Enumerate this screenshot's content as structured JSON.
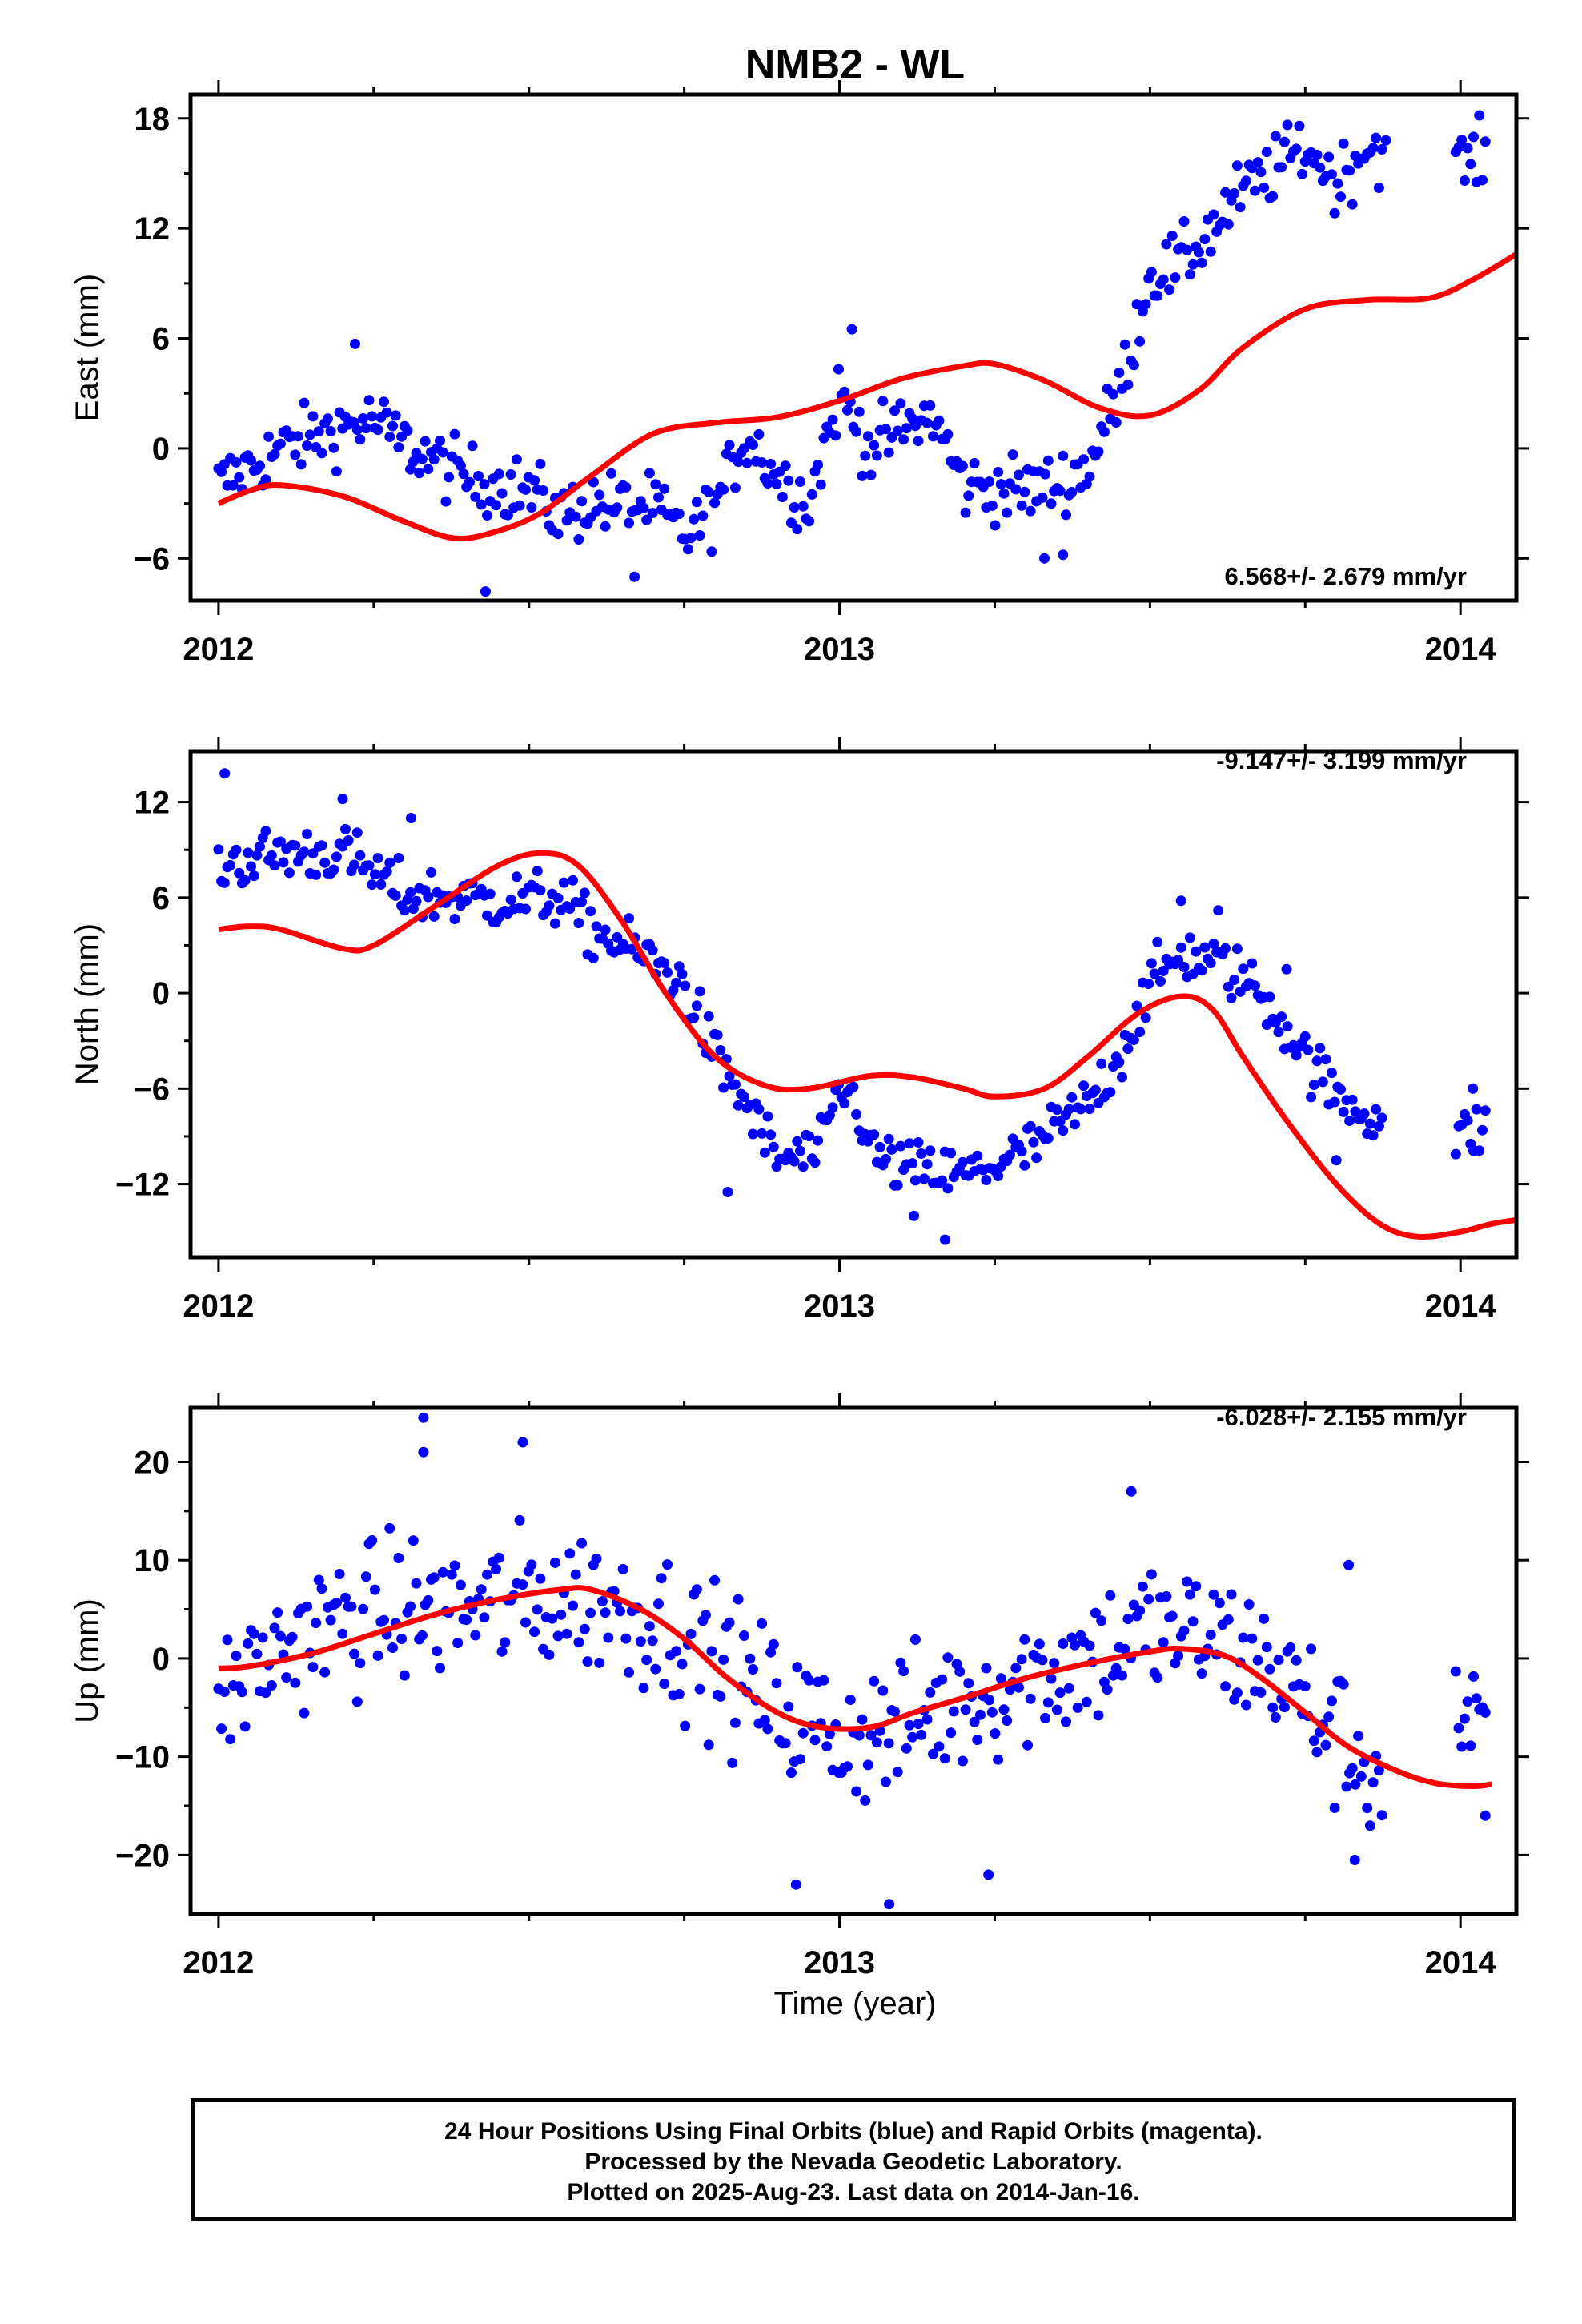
{
  "title": "NMB2 - WL",
  "x_tick_labels": [
    "2012",
    "2013",
    "2014"
  ],
  "x_axis_label": "Time (year)",
  "footer": {
    "line1": "24 Hour Positions Using Final Orbits (blue) and Rapid Orbits (magenta).",
    "line2": "Processed by the Nevada Geodetic Laboratory.",
    "line3": "Plotted on 2025-Aug-23. Last data on 2014-Jan-16."
  },
  "colors": {
    "points": "#0000ff",
    "model": "#ff0000",
    "axes": "#000000"
  },
  "chart_data": [
    {
      "type": "scatter",
      "panel": "east",
      "ylabel": "East (mm)",
      "rate_label": "6.568+/- 2.679 mm/yr",
      "xlim": [
        2011.955,
        2014.09
      ],
      "ylim": [
        -8.3,
        19.3
      ],
      "yticks": [
        -6,
        0,
        6,
        12,
        18
      ],
      "grid": false,
      "data_trend": [
        [
          2012.0,
          -2.0
        ],
        [
          2012.1,
          0.0
        ],
        [
          2012.2,
          1.2
        ],
        [
          2012.25,
          1.5
        ],
        [
          2012.3,
          0.2
        ],
        [
          2012.4,
          -1.6
        ],
        [
          2012.5,
          -2.3
        ],
        [
          2012.55,
          -3.6
        ],
        [
          2012.6,
          -3.0
        ],
        [
          2012.7,
          -3.2
        ],
        [
          2012.75,
          -4.8
        ],
        [
          2012.8,
          -3.2
        ],
        [
          2012.85,
          0.8
        ],
        [
          2012.9,
          -1.5
        ],
        [
          2012.95,
          -3.0
        ],
        [
          2013.0,
          3.0
        ],
        [
          2013.05,
          0.0
        ],
        [
          2013.1,
          1.0
        ],
        [
          2013.15,
          1.8
        ],
        [
          2013.2,
          -2.0
        ],
        [
          2013.3,
          -2.3
        ],
        [
          2013.35,
          -2.0
        ],
        [
          2013.4,
          -1.0
        ],
        [
          2013.45,
          3.0
        ],
        [
          2013.5,
          9.5
        ],
        [
          2013.55,
          10.0
        ],
        [
          2013.65,
          14.0
        ],
        [
          2013.75,
          16.5
        ],
        [
          2013.8,
          14.5
        ],
        [
          2013.85,
          16.5
        ],
        [
          2014.0,
          15.5
        ],
        [
          2014.04,
          16.0
        ]
      ],
      "spread": 1.2,
      "point_count": 430,
      "gaps": [
        [
          2013.875,
          2013.99
        ]
      ],
      "outliers": [
        [
          2012.43,
          -7.8
        ],
        [
          2012.67,
          -7.0
        ],
        [
          2012.22,
          5.7
        ],
        [
          2013.02,
          6.5
        ],
        [
          2013.33,
          -6.0
        ],
        [
          2013.36,
          -5.8
        ],
        [
          2013.88,
          16.8
        ]
      ],
      "model": [
        [
          2012.0,
          -3.0
        ],
        [
          2012.05,
          -2.3
        ],
        [
          2012.1,
          -2.0
        ],
        [
          2012.2,
          -2.6
        ],
        [
          2012.3,
          -4.0
        ],
        [
          2012.38,
          -4.9
        ],
        [
          2012.45,
          -4.5
        ],
        [
          2012.52,
          -3.5
        ],
        [
          2012.6,
          -1.5
        ],
        [
          2012.7,
          0.8
        ],
        [
          2012.8,
          1.4
        ],
        [
          2012.9,
          1.7
        ],
        [
          2013.0,
          2.6
        ],
        [
          2013.1,
          3.8
        ],
        [
          2013.2,
          4.5
        ],
        [
          2013.25,
          4.6
        ],
        [
          2013.33,
          3.7
        ],
        [
          2013.42,
          2.2
        ],
        [
          2013.5,
          1.8
        ],
        [
          2013.58,
          3.2
        ],
        [
          2013.65,
          5.5
        ],
        [
          2013.75,
          7.6
        ],
        [
          2013.85,
          8.1
        ],
        [
          2013.95,
          8.2
        ],
        [
          2014.02,
          9.2
        ],
        [
          2014.1,
          10.8
        ]
      ]
    },
    {
      "type": "scatter",
      "panel": "north",
      "ylabel": "North (mm)",
      "rate_label": "-9.147+/- 3.199 mm/yr",
      "xlim": [
        2011.955,
        2014.09
      ],
      "ylim": [
        -16.6,
        15.2
      ],
      "yticks": [
        -12,
        -6,
        0,
        6,
        12
      ],
      "grid": false,
      "data_trend": [
        [
          2012.0,
          8.0
        ],
        [
          2012.1,
          8.8
        ],
        [
          2012.2,
          8.8
        ],
        [
          2012.3,
          6.2
        ],
        [
          2012.45,
          5.8
        ],
        [
          2012.55,
          6.0
        ],
        [
          2012.6,
          4.0
        ],
        [
          2012.7,
          2.0
        ],
        [
          2012.75,
          0.5
        ],
        [
          2012.8,
          -4.0
        ],
        [
          2012.85,
          -7.0
        ],
        [
          2012.9,
          -10.5
        ],
        [
          2012.97,
          -10.0
        ],
        [
          2013.0,
          -6.0
        ],
        [
          2013.03,
          -7.0
        ],
        [
          2013.05,
          -10.0
        ],
        [
          2013.1,
          -11.0
        ],
        [
          2013.2,
          -11.5
        ],
        [
          2013.3,
          -10.0
        ],
        [
          2013.4,
          -7.0
        ],
        [
          2013.45,
          -4.0
        ],
        [
          2013.5,
          0.5
        ],
        [
          2013.55,
          2.5
        ],
        [
          2013.6,
          2.0
        ],
        [
          2013.65,
          1.0
        ],
        [
          2013.7,
          -1.0
        ],
        [
          2013.75,
          -4.0
        ],
        [
          2013.8,
          -6.5
        ],
        [
          2013.85,
          -7.5
        ],
        [
          2013.9,
          -8.5
        ],
        [
          2014.0,
          -9.0
        ],
        [
          2014.04,
          -8.5
        ]
      ],
      "spread": 1.2,
      "point_count": 430,
      "gaps": [
        [
          2013.875,
          2013.99
        ]
      ],
      "outliers": [
        [
          2012.01,
          13.8
        ],
        [
          2012.2,
          12.2
        ],
        [
          2012.31,
          11.0
        ],
        [
          2012.82,
          -12.5
        ],
        [
          2013.12,
          -14.0
        ],
        [
          2013.17,
          -15.5
        ],
        [
          2013.55,
          5.8
        ],
        [
          2013.61,
          5.2
        ],
        [
          2013.72,
          1.5
        ],
        [
          2013.8,
          -10.5
        ],
        [
          2014.02,
          -6.0
        ]
      ],
      "model": [
        [
          2012.0,
          4.0
        ],
        [
          2012.05,
          4.2
        ],
        [
          2012.1,
          4.0
        ],
        [
          2012.2,
          2.8
        ],
        [
          2012.25,
          3.0
        ],
        [
          2012.35,
          5.5
        ],
        [
          2012.45,
          8.0
        ],
        [
          2012.52,
          8.8
        ],
        [
          2012.58,
          8.0
        ],
        [
          2012.65,
          4.5
        ],
        [
          2012.72,
          0.0
        ],
        [
          2012.8,
          -4.0
        ],
        [
          2012.88,
          -5.8
        ],
        [
          2012.95,
          -6.0
        ],
        [
          2013.05,
          -5.2
        ],
        [
          2013.12,
          -5.3
        ],
        [
          2013.2,
          -6.0
        ],
        [
          2013.25,
          -6.5
        ],
        [
          2013.33,
          -6.0
        ],
        [
          2013.4,
          -4.0
        ],
        [
          2013.48,
          -1.3
        ],
        [
          2013.55,
          -0.2
        ],
        [
          2013.6,
          -1.0
        ],
        [
          2013.65,
          -4.0
        ],
        [
          2013.72,
          -8.0
        ],
        [
          2013.8,
          -12.0
        ],
        [
          2013.87,
          -14.5
        ],
        [
          2013.93,
          -15.3
        ],
        [
          2014.0,
          -15.0
        ],
        [
          2014.05,
          -14.5
        ],
        [
          2014.1,
          -14.2
        ]
      ]
    },
    {
      "type": "scatter",
      "panel": "up",
      "ylabel": "Up (mm)",
      "rate_label": "-6.028+/- 2.155 mm/yr",
      "xlim": [
        2011.955,
        2014.09
      ],
      "ylim": [
        -26,
        25.5
      ],
      "yticks": [
        -20,
        -10,
        0,
        10,
        20
      ],
      "grid": false,
      "data_trend": [
        [
          2012.0,
          -4.0
        ],
        [
          2012.1,
          1.0
        ],
        [
          2012.2,
          4.0
        ],
        [
          2012.3,
          5.0
        ],
        [
          2012.4,
          5.0
        ],
        [
          2012.5,
          6.0
        ],
        [
          2012.6,
          6.0
        ],
        [
          2012.7,
          4.0
        ],
        [
          2012.8,
          0.0
        ],
        [
          2012.9,
          -5.0
        ],
        [
          2013.0,
          -8.0
        ],
        [
          2013.1,
          -7.0
        ],
        [
          2013.2,
          -4.0
        ],
        [
          2013.3,
          -2.0
        ],
        [
          2013.4,
          0.0
        ],
        [
          2013.5,
          3.0
        ],
        [
          2013.6,
          2.0
        ],
        [
          2013.7,
          -1.0
        ],
        [
          2013.8,
          -8.0
        ],
        [
          2013.87,
          -12.0
        ],
        [
          2014.0,
          -6.0
        ],
        [
          2014.04,
          -8.0
        ]
      ],
      "spread": 5.0,
      "point_count": 430,
      "gaps": [
        [
          2013.875,
          2013.99
        ]
      ],
      "outliers": [
        [
          2012.33,
          24.5
        ],
        [
          2012.49,
          22.0
        ],
        [
          2012.33,
          21.0
        ],
        [
          2012.93,
          -23.0
        ],
        [
          2013.08,
          -25.0
        ],
        [
          2013.24,
          -22.0
        ],
        [
          2013.47,
          17.0
        ],
        [
          2013.83,
          -20.5
        ],
        [
          2013.82,
          9.5
        ],
        [
          2014.04,
          -16.0
        ]
      ],
      "model": [
        [
          2012.0,
          -1.0
        ],
        [
          2012.05,
          -0.8
        ],
        [
          2012.15,
          0.5
        ],
        [
          2012.25,
          2.5
        ],
        [
          2012.35,
          4.5
        ],
        [
          2012.45,
          6.0
        ],
        [
          2012.55,
          7.0
        ],
        [
          2012.6,
          7.0
        ],
        [
          2012.68,
          5.0
        ],
        [
          2012.75,
          2.0
        ],
        [
          2012.82,
          -2.0
        ],
        [
          2012.9,
          -5.5
        ],
        [
          2012.97,
          -7.0
        ],
        [
          2013.05,
          -7.0
        ],
        [
          2013.12,
          -5.5
        ],
        [
          2013.2,
          -4.0
        ],
        [
          2013.3,
          -2.0
        ],
        [
          2013.4,
          -0.5
        ],
        [
          2013.5,
          0.7
        ],
        [
          2013.55,
          1.0
        ],
        [
          2013.62,
          0.3
        ],
        [
          2013.68,
          -2.0
        ],
        [
          2013.75,
          -5.5
        ],
        [
          2013.82,
          -9.0
        ],
        [
          2013.9,
          -11.5
        ],
        [
          2013.96,
          -12.7
        ],
        [
          2014.02,
          -13.0
        ],
        [
          2014.05,
          -12.8
        ]
      ]
    }
  ]
}
